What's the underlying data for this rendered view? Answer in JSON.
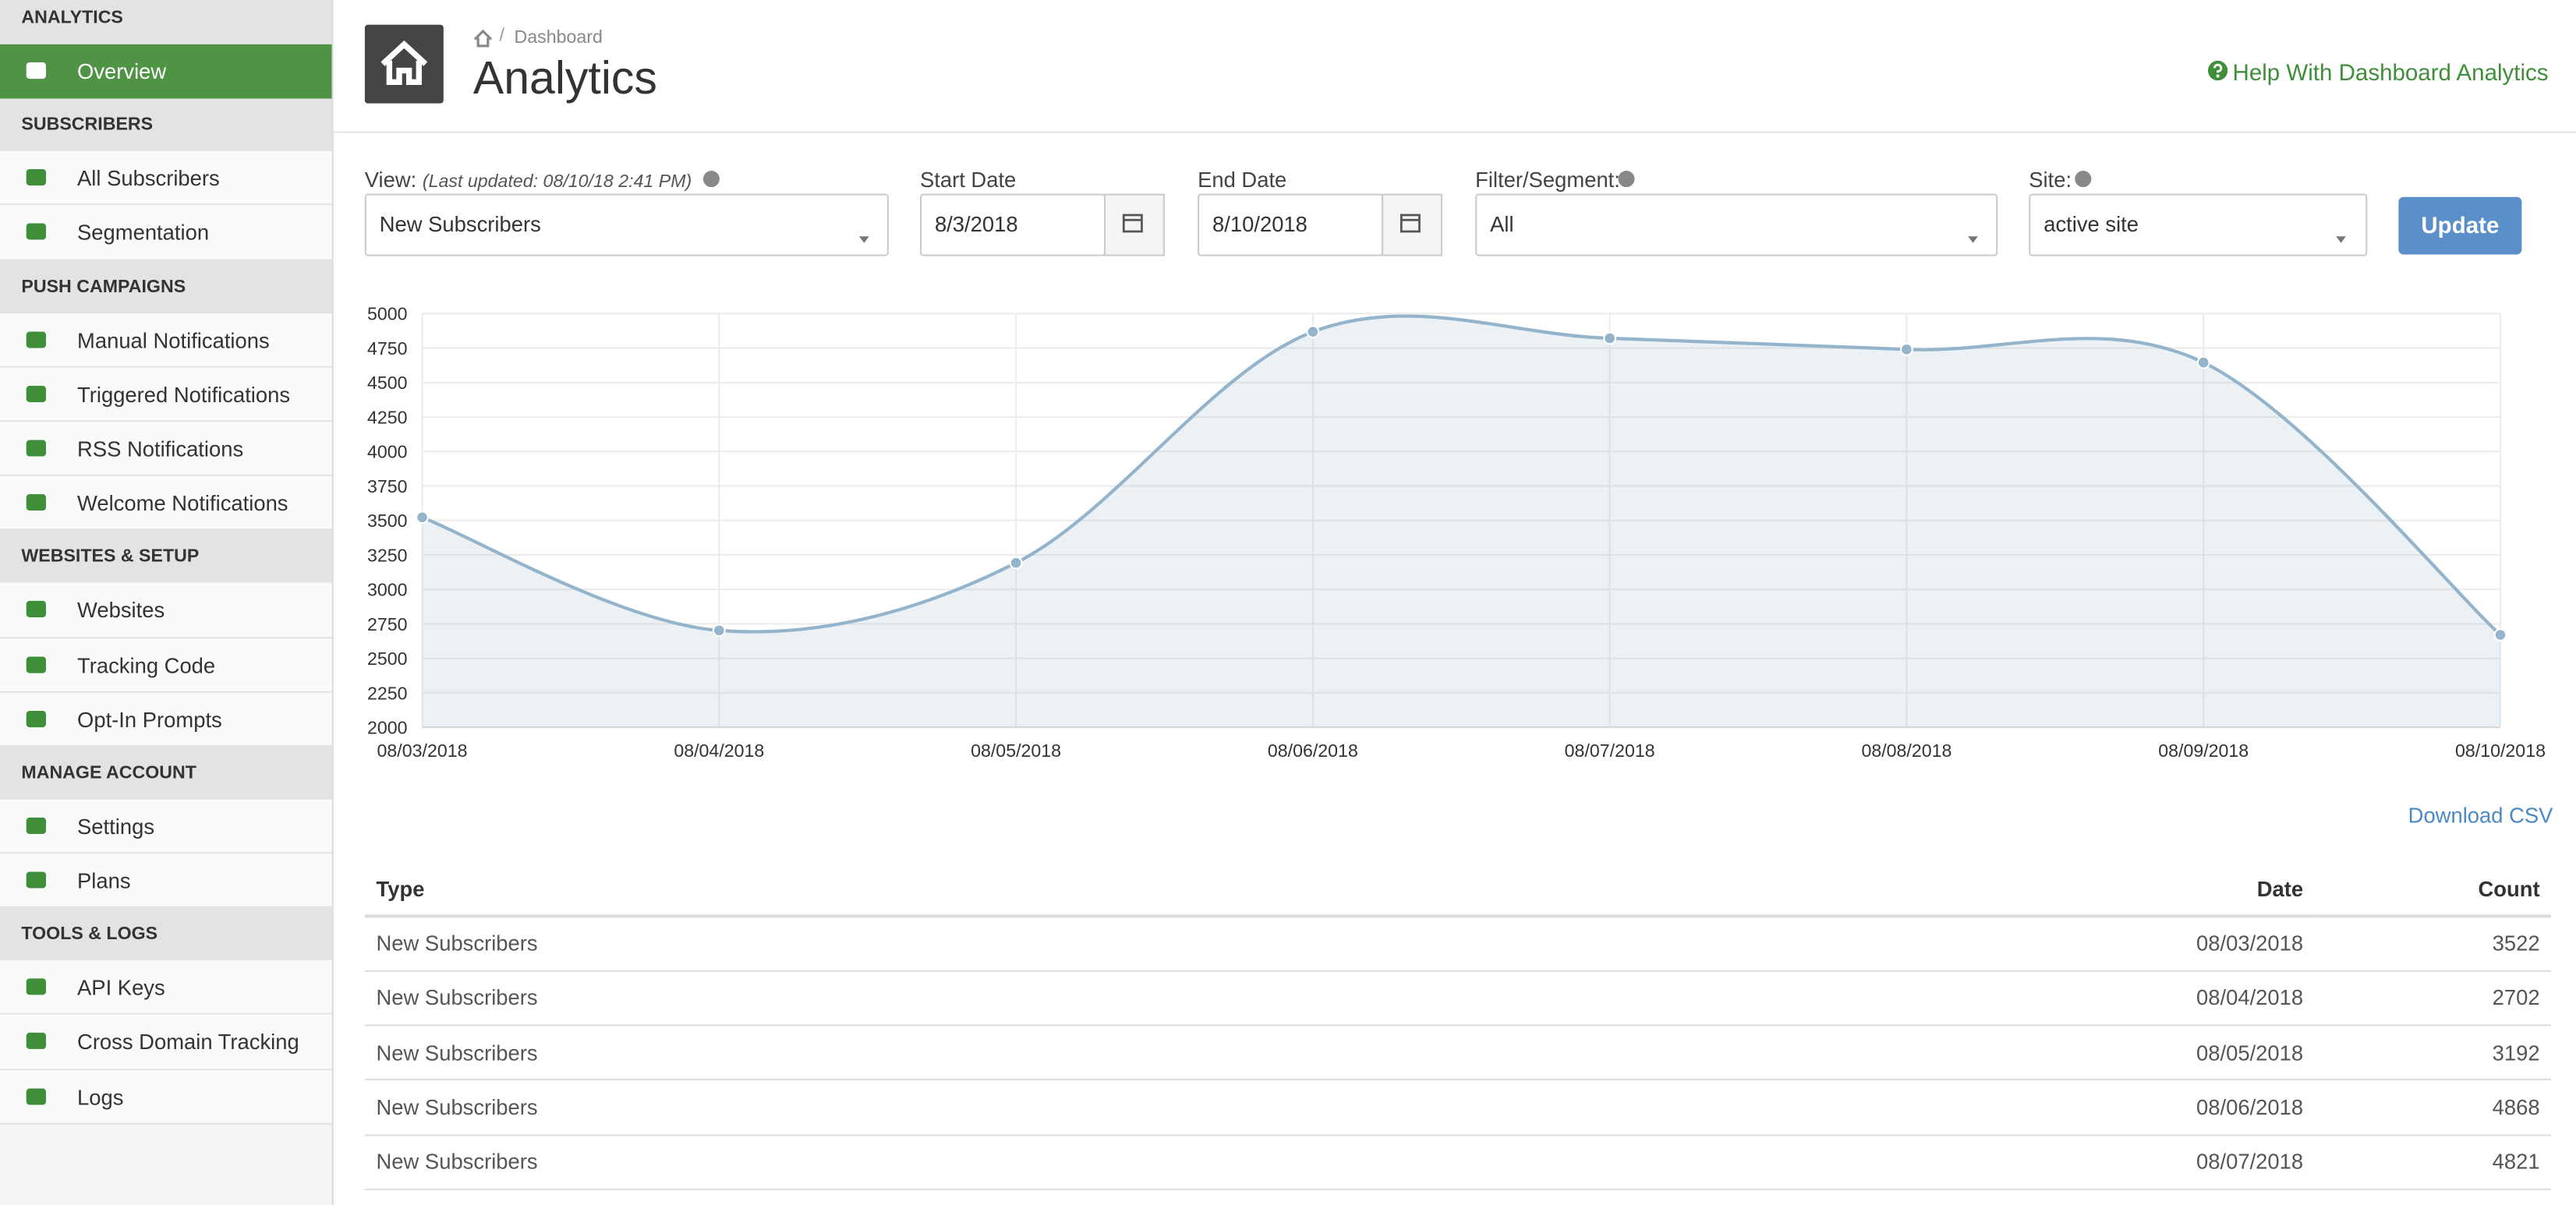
{
  "sidebar": {
    "sections": [
      {
        "title": "ANALYTICS",
        "items": [
          "Overview"
        ]
      },
      {
        "title": "SUBSCRIBERS",
        "items": [
          "All Subscribers",
          "Segmentation"
        ]
      },
      {
        "title": "PUSH CAMPAIGNS",
        "items": [
          "Manual Notifications",
          "Triggered Notifications",
          "RSS Notifications",
          "Welcome Notifications"
        ]
      },
      {
        "title": "WEBSITES & SETUP",
        "items": [
          "Websites",
          "Tracking Code",
          "Opt-In Prompts"
        ]
      },
      {
        "title": "MANAGE ACCOUNT",
        "items": [
          "Settings",
          "Plans"
        ]
      },
      {
        "title": "TOOLS & LOGS",
        "items": [
          "API Keys",
          "Cross Domain Tracking",
          "Logs"
        ]
      }
    ]
  },
  "header": {
    "breadcrumb": "Dashboard",
    "title": "Analytics",
    "help": "Help With Dashboard Analytics"
  },
  "filters": {
    "view_label": "View:",
    "last_updated": "(Last updated: 08/10/18 2:41 PM)",
    "view_value": "New Subscribers",
    "start_label": "Start Date",
    "start_value": "8/3/2018",
    "end_label": "End Date",
    "end_value": "8/10/2018",
    "segment_label": "Filter/Segment:",
    "segment_value": "All",
    "site_label": "Site:",
    "site_value": "active site",
    "update": "Update"
  },
  "chart_data": {
    "type": "line",
    "categories": [
      "08/03/2018",
      "08/04/2018",
      "08/05/2018",
      "08/06/2018",
      "08/07/2018",
      "08/08/2018",
      "08/09/2018",
      "08/10/2018"
    ],
    "series": [
      {
        "name": "New Subscribers",
        "color": "#94b4cc",
        "values": [
          3522,
          2702,
          3192,
          4868,
          4821,
          4740,
          4645,
          2670
        ]
      }
    ],
    "ylim": [
      2000,
      5000
    ],
    "yticks": [
      2000,
      2250,
      2500,
      2750,
      3000,
      3250,
      3500,
      3750,
      4000,
      4250,
      4500,
      4750,
      5000
    ],
    "grid": true
  },
  "download": "Download CSV",
  "table": {
    "headers": [
      "Type",
      "Date",
      "Count"
    ],
    "rows": [
      [
        "New Subscribers",
        "08/03/2018",
        3522
      ],
      [
        "New Subscribers",
        "08/04/2018",
        2702
      ],
      [
        "New Subscribers",
        "08/05/2018",
        3192
      ],
      [
        "New Subscribers",
        "08/06/2018",
        4868
      ],
      [
        "New Subscribers",
        "08/07/2018",
        4821
      ]
    ]
  }
}
